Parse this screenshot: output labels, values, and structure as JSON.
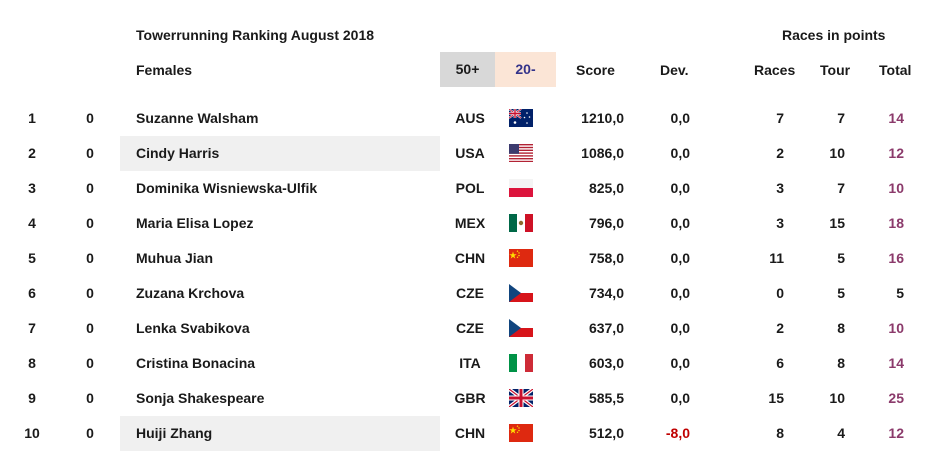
{
  "header": {
    "title": "Towerrunning Ranking August 2018",
    "races_title": "Races in points",
    "category": "Females",
    "badge_50": "50+",
    "badge_20": "20-",
    "col_score": "Score",
    "col_dev": "Dev.",
    "col_races": "Races",
    "col_tour": "Tour",
    "col_total": "Total"
  },
  "colors": {
    "total": "#8b3a6b",
    "negative_dev": "#c00000",
    "badge_50_bg": "#d8d8d8",
    "badge_20_bg": "#fbe5d6",
    "row_highlight": "#f0f0f0"
  },
  "rows": [
    {
      "rank": "1",
      "change": "0",
      "name": "Suzanne Walsham",
      "country": "AUS",
      "flag": "australia-flag",
      "score": "1210,0",
      "dev": "0,0",
      "races": "7",
      "tour": "7",
      "total": "14"
    },
    {
      "rank": "2",
      "change": "0",
      "name": "Cindy Harris",
      "country": "USA",
      "flag": "usa-flag",
      "score": "1086,0",
      "dev": "0,0",
      "races": "2",
      "tour": "10",
      "total": "12"
    },
    {
      "rank": "3",
      "change": "0",
      "name": "Dominika Wisniewska-Ulfik",
      "country": "POL",
      "flag": "poland-flag",
      "score": "825,0",
      "dev": "0,0",
      "races": "3",
      "tour": "7",
      "total": "10"
    },
    {
      "rank": "4",
      "change": "0",
      "name": "Maria Elisa Lopez",
      "country": "MEX",
      "flag": "mexico-flag",
      "score": "796,0",
      "dev": "0,0",
      "races": "3",
      "tour": "15",
      "total": "18"
    },
    {
      "rank": "5",
      "change": "0",
      "name": "Muhua Jian",
      "country": "CHN",
      "flag": "china-flag",
      "score": "758,0",
      "dev": "0,0",
      "races": "11",
      "tour": "5",
      "total": "16"
    },
    {
      "rank": "6",
      "change": "0",
      "name": "Zuzana Krchova",
      "country": "CZE",
      "flag": "czech-flag",
      "score": "734,0",
      "dev": "0,0",
      "races": "0",
      "tour": "5",
      "total": "5"
    },
    {
      "rank": "7",
      "change": "0",
      "name": "Lenka Svabikova",
      "country": "CZE",
      "flag": "czech-flag",
      "score": "637,0",
      "dev": "0,0",
      "races": "2",
      "tour": "8",
      "total": "10"
    },
    {
      "rank": "8",
      "change": "0",
      "name": "Cristina Bonacina",
      "country": "ITA",
      "flag": "italy-flag",
      "score": "603,0",
      "dev": "0,0",
      "races": "6",
      "tour": "8",
      "total": "14"
    },
    {
      "rank": "9",
      "change": "0",
      "name": "Sonja Shakespeare",
      "country": "GBR",
      "flag": "uk-flag",
      "score": "585,5",
      "dev": "0,0",
      "races": "15",
      "tour": "10",
      "total": "25"
    },
    {
      "rank": "10",
      "change": "0",
      "name": "Huiji Zhang",
      "country": "CHN",
      "flag": "china-flag",
      "score": "512,0",
      "dev": "-8,0",
      "races": "8",
      "tour": "4",
      "total": "12"
    }
  ]
}
